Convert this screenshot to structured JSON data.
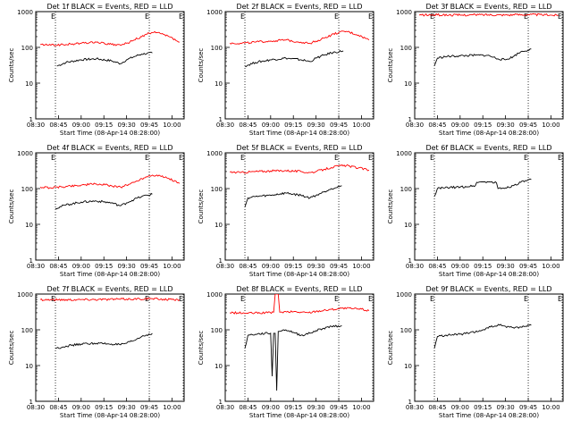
{
  "chart_data": [
    {
      "type": "line",
      "title": "Det 1f BLACK = Events, RED = LLD",
      "xlabel": "Start Time (08-Apr-14 08:28:00)",
      "ylabel": "Counts/sec",
      "yscale": "log",
      "ylim": [
        1,
        1000
      ],
      "xlim": [
        "08:30",
        "10:08"
      ],
      "xticks": [
        "08:30",
        "08:45",
        "09:00",
        "09:15",
        "09:30",
        "09:45",
        "10:00"
      ],
      "yticks": [
        "1",
        "10",
        "100",
        "1000"
      ],
      "markers": [
        {
          "time": "08:43",
          "label": "E"
        },
        {
          "time": "09:45",
          "label": "E"
        },
        {
          "time": "10:08",
          "label": "E"
        }
      ],
      "series": [
        {
          "color": "#000000",
          "x": [
            "08:44",
            "08:50",
            "09:00",
            "09:10",
            "09:20",
            "09:26",
            "09:30",
            "09:35",
            "09:40",
            "09:47"
          ],
          "y": [
            30,
            38,
            45,
            48,
            42,
            35,
            45,
            55,
            65,
            70
          ]
        },
        {
          "color": "#ff0000",
          "x": [
            "08:33",
            "08:40",
            "08:50",
            "09:00",
            "09:10",
            "09:20",
            "09:26",
            "09:30",
            "09:35",
            "09:40",
            "09:45",
            "09:50",
            "09:58",
            "10:05"
          ],
          "y": [
            120,
            115,
            120,
            130,
            140,
            120,
            115,
            130,
            160,
            200,
            250,
            260,
            200,
            140
          ]
        }
      ]
    },
    {
      "type": "line",
      "title": "Det 2f BLACK = Events, RED = LLD",
      "xlabel": "Start Time (08-Apr-14 08:28:00)",
      "ylabel": "Counts/sec",
      "yscale": "log",
      "ylim": [
        1,
        1000
      ],
      "xlim": [
        "08:30",
        "10:08"
      ],
      "xticks": [
        "08:30",
        "08:45",
        "09:00",
        "09:15",
        "09:30",
        "09:45",
        "10:00"
      ],
      "yticks": [
        "1",
        "10",
        "100",
        "1000"
      ],
      "markers": [
        {
          "time": "08:43",
          "label": "E"
        },
        {
          "time": "09:45",
          "label": "E"
        },
        {
          "time": "10:08",
          "label": "E"
        }
      ],
      "series": [
        {
          "color": "#000000",
          "x": [
            "08:43",
            "08:50",
            "09:00",
            "09:10",
            "09:20",
            "09:26",
            "09:30",
            "09:35",
            "09:40",
            "09:48"
          ],
          "y": [
            30,
            38,
            45,
            50,
            45,
            40,
            50,
            60,
            70,
            80
          ]
        },
        {
          "color": "#ff0000",
          "x": [
            "08:33",
            "08:40",
            "08:50",
            "09:00",
            "09:10",
            "09:20",
            "09:26",
            "09:30",
            "09:35",
            "09:40",
            "09:45",
            "09:50",
            "09:58",
            "10:05"
          ],
          "y": [
            130,
            130,
            140,
            150,
            160,
            140,
            130,
            150,
            180,
            220,
            260,
            280,
            220,
            160
          ]
        }
      ]
    },
    {
      "type": "line",
      "title": "Det 3f BLACK = Events, RED = LLD",
      "xlabel": "Start Time (08-Apr-14 08:28:00)",
      "ylabel": "Counts/sec",
      "yscale": "log",
      "ylim": [
        1,
        1000
      ],
      "xlim": [
        "08:30",
        "10:08"
      ],
      "xticks": [
        "08:30",
        "08:45",
        "09:00",
        "09:15",
        "09:30",
        "09:45",
        "10:00"
      ],
      "yticks": [
        "1",
        "10",
        "100",
        "1000"
      ],
      "markers": [
        {
          "time": "08:43",
          "label": "E"
        },
        {
          "time": "09:45",
          "label": "E"
        },
        {
          "time": "10:08",
          "label": "E"
        }
      ],
      "series": [
        {
          "color": "#000000",
          "x": [
            "08:43",
            "08:45",
            "08:50",
            "09:00",
            "09:10",
            "09:18",
            "09:25",
            "09:30",
            "09:35",
            "09:40",
            "09:47"
          ],
          "y": [
            30,
            50,
            55,
            58,
            60,
            60,
            48,
            45,
            55,
            75,
            90
          ]
        },
        {
          "color": "#ff0000",
          "x": [
            "08:33",
            "08:45",
            "09:00",
            "09:15",
            "09:30",
            "09:45",
            "10:00",
            "10:05"
          ],
          "y": [
            800,
            810,
            800,
            820,
            810,
            830,
            800,
            790
          ]
        }
      ]
    },
    {
      "type": "line",
      "title": "Det 4f BLACK = Events, RED = LLD",
      "xlabel": "Start Time (08-Apr-14 08:28:00)",
      "ylabel": "Counts/sec",
      "yscale": "log",
      "ylim": [
        1,
        1000
      ],
      "xlim": [
        "08:30",
        "10:08"
      ],
      "xticks": [
        "08:30",
        "08:45",
        "09:00",
        "09:15",
        "09:30",
        "09:45",
        "10:00"
      ],
      "yticks": [
        "1",
        "10",
        "100",
        "1000"
      ],
      "markers": [
        {
          "time": "08:43",
          "label": "E"
        },
        {
          "time": "09:45",
          "label": "E"
        },
        {
          "time": "10:08",
          "label": "E"
        }
      ],
      "series": [
        {
          "color": "#000000",
          "x": [
            "08:43",
            "08:50",
            "09:00",
            "09:10",
            "09:20",
            "09:26",
            "09:30",
            "09:35",
            "09:40",
            "09:47"
          ],
          "y": [
            28,
            35,
            42,
            45,
            40,
            33,
            40,
            50,
            60,
            70
          ]
        },
        {
          "color": "#ff0000",
          "x": [
            "08:33",
            "08:40",
            "08:50",
            "09:00",
            "09:10",
            "09:20",
            "09:26",
            "09:30",
            "09:35",
            "09:40",
            "09:45",
            "09:50",
            "09:58",
            "10:05"
          ],
          "y": [
            110,
            105,
            115,
            125,
            135,
            120,
            110,
            125,
            150,
            190,
            230,
            240,
            190,
            140
          ]
        }
      ]
    },
    {
      "type": "line",
      "title": "Det 5f BLACK = Events, RED = LLD",
      "xlabel": "Start Time (08-Apr-14 08:28:00)",
      "ylabel": "Counts/sec",
      "yscale": "log",
      "ylim": [
        1,
        1000
      ],
      "xlim": [
        "08:30",
        "10:08"
      ],
      "xticks": [
        "08:30",
        "08:45",
        "09:00",
        "09:15",
        "09:30",
        "09:45",
        "10:00"
      ],
      "yticks": [
        "1",
        "10",
        "100",
        "1000"
      ],
      "markers": [
        {
          "time": "08:43",
          "label": "E"
        },
        {
          "time": "09:45",
          "label": "E"
        },
        {
          "time": "10:08",
          "label": "E"
        }
      ],
      "series": [
        {
          "color": "#000000",
          "x": [
            "08:43",
            "08:45",
            "08:50",
            "09:00",
            "09:10",
            "09:20",
            "09:26",
            "09:30",
            "09:35",
            "09:40",
            "09:47"
          ],
          "y": [
            30,
            55,
            60,
            65,
            75,
            65,
            55,
            65,
            80,
            100,
            120
          ]
        },
        {
          "color": "#ff0000",
          "x": [
            "08:33",
            "08:40",
            "08:50",
            "09:00",
            "09:10",
            "09:20",
            "09:26",
            "09:30",
            "09:35",
            "09:40",
            "09:45",
            "09:50",
            "09:58",
            "10:05"
          ],
          "y": [
            290,
            280,
            300,
            310,
            320,
            300,
            280,
            300,
            340,
            390,
            430,
            440,
            380,
            330
          ]
        }
      ]
    },
    {
      "type": "line",
      "title": "Det 6f BLACK = Events, RED = LLD",
      "xlabel": "Start Time (08-Apr-14 08:28:00)",
      "ylabel": "Counts/sec",
      "yscale": "log",
      "ylim": [
        1,
        1000
      ],
      "xlim": [
        "08:30",
        "10:08"
      ],
      "xticks": [
        "08:30",
        "08:45",
        "09:00",
        "09:15",
        "09:30",
        "09:45",
        "10:00"
      ],
      "yticks": [
        "1",
        "10",
        "100",
        "1000"
      ],
      "markers": [
        {
          "time": "08:43",
          "label": "E"
        },
        {
          "time": "09:45",
          "label": "E"
        },
        {
          "time": "10:08",
          "label": "E"
        }
      ],
      "series": [
        {
          "color": "#000000",
          "x": [
            "08:43",
            "08:45",
            "08:50",
            "09:00",
            "09:10",
            "09:11",
            "09:18",
            "09:24",
            "09:25",
            "09:30",
            "09:35",
            "09:40",
            "09:47"
          ],
          "y": [
            60,
            100,
            105,
            110,
            120,
            150,
            155,
            145,
            100,
            105,
            120,
            150,
            180
          ]
        }
      ]
    },
    {
      "type": "line",
      "title": "Det 7f BLACK = Events, RED = LLD",
      "xlabel": "Start Time (08-Apr-14 08:28:00)",
      "ylabel": "Counts/sec",
      "yscale": "log",
      "ylim": [
        1,
        1000
      ],
      "xlim": [
        "08:30",
        "10:08"
      ],
      "xticks": [
        "08:30",
        "08:45",
        "09:00",
        "09:15",
        "09:30",
        "09:45",
        "10:00"
      ],
      "yticks": [
        "1",
        "10",
        "100",
        "1000"
      ],
      "markers": [
        {
          "time": "08:43",
          "label": "E"
        },
        {
          "time": "09:45",
          "label": "E"
        },
        {
          "time": "10:08",
          "label": "E"
        }
      ],
      "series": [
        {
          "color": "#000000",
          "x": [
            "08:43",
            "08:50",
            "09:00",
            "09:10",
            "09:20",
            "09:26",
            "09:30",
            "09:35",
            "09:40",
            "09:47"
          ],
          "y": [
            30,
            35,
            40,
            42,
            40,
            38,
            42,
            50,
            65,
            80
          ]
        },
        {
          "color": "#ff0000",
          "x": [
            "08:33",
            "08:45",
            "09:00",
            "09:15",
            "09:30",
            "09:45",
            "10:00",
            "10:05"
          ],
          "y": [
            700,
            690,
            700,
            710,
            720,
            740,
            700,
            690
          ]
        }
      ]
    },
    {
      "type": "line",
      "title": "Det 8f BLACK = Events, RED = LLD",
      "xlabel": "Start Time (08-Apr-14 08:28:00)",
      "ylabel": "Counts/sec",
      "yscale": "log",
      "ylim": [
        1,
        1000
      ],
      "xlim": [
        "08:30",
        "10:08"
      ],
      "xticks": [
        "08:30",
        "08:45",
        "09:00",
        "09:15",
        "09:30",
        "09:45",
        "10:00"
      ],
      "yticks": [
        "1",
        "10",
        "100",
        "1000"
      ],
      "markers": [
        {
          "time": "08:43",
          "label": "E"
        },
        {
          "time": "09:45",
          "label": "E"
        },
        {
          "time": "10:08",
          "label": "E"
        }
      ],
      "series": [
        {
          "color": "#000000",
          "x": [
            "08:43",
            "08:45",
            "08:50",
            "08:58",
            "09:00",
            "09:01",
            "09:02",
            "09:03",
            "09:04",
            "09:05",
            "09:10",
            "09:15",
            "09:20",
            "09:26",
            "09:30",
            "09:35",
            "09:40",
            "09:47"
          ],
          "y": [
            30,
            70,
            75,
            80,
            80,
            5,
            80,
            80,
            2,
            90,
            100,
            85,
            70,
            80,
            95,
            110,
            125,
            130
          ]
        },
        {
          "color": "#ff0000",
          "x": [
            "08:33",
            "08:45",
            "08:58",
            "09:02",
            "09:03",
            "09:04",
            "09:05",
            "09:06",
            "09:15",
            "09:25",
            "09:30",
            "09:40",
            "09:47",
            "10:00",
            "10:05"
          ],
          "y": [
            300,
            290,
            300,
            310,
            1000,
            1000,
            1000,
            310,
            320,
            300,
            330,
            370,
            400,
            380,
            340
          ]
        }
      ]
    },
    {
      "type": "line",
      "title": "Det 9f BLACK = Events, RED = LLD",
      "xlabel": "Start Time (08-Apr-14 08:28:00)",
      "ylabel": "Counts/sec",
      "yscale": "log",
      "ylim": [
        1,
        1000
      ],
      "xlim": [
        "08:30",
        "10:08"
      ],
      "xticks": [
        "08:30",
        "08:45",
        "09:00",
        "09:15",
        "09:30",
        "09:45",
        "10:00"
      ],
      "yticks": [
        "1",
        "10",
        "100",
        "1000"
      ],
      "markers": [
        {
          "time": "08:43",
          "label": "E"
        },
        {
          "time": "09:45",
          "label": "E"
        },
        {
          "time": "10:08",
          "label": "E"
        }
      ],
      "series": [
        {
          "color": "#000000",
          "x": [
            "08:43",
            "08:45",
            "08:50",
            "09:00",
            "09:10",
            "09:15",
            "09:20",
            "09:26",
            "09:30",
            "09:35",
            "09:40",
            "09:47"
          ],
          "y": [
            30,
            65,
            70,
            75,
            85,
            100,
            120,
            135,
            125,
            115,
            120,
            135
          ]
        }
      ]
    }
  ]
}
